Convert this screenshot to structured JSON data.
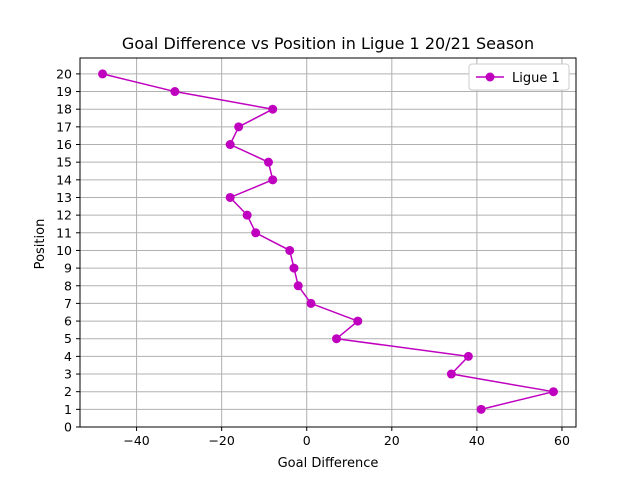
{
  "chart_data": {
    "type": "line",
    "title": "Goal Difference vs Position in Ligue 1 20/21 Season",
    "xlabel": "Goal Difference",
    "ylabel": "Position",
    "xlim": [
      -53.3,
      63.3
    ],
    "ylim": [
      0,
      20.9
    ],
    "xticks": [
      -40,
      -20,
      0,
      20,
      40,
      60
    ],
    "xtick_labels": [
      "−40",
      "−20",
      "0",
      "20",
      "40",
      "60"
    ],
    "yticks": [
      0,
      1,
      2,
      3,
      4,
      5,
      6,
      7,
      8,
      9,
      10,
      11,
      12,
      13,
      14,
      15,
      16,
      17,
      18,
      19,
      20
    ],
    "ytick_labels": [
      "0",
      "1",
      "2",
      "3",
      "4",
      "5",
      "6",
      "7",
      "8",
      "9",
      "10",
      "11",
      "12",
      "13",
      "14",
      "15",
      "16",
      "17",
      "18",
      "19",
      "20"
    ],
    "grid": true,
    "legend_position": "top-right",
    "series": [
      {
        "name": "Ligue 1",
        "color": "#bf00bf",
        "marker": "circle",
        "x": [
          41,
          58,
          34,
          38,
          7,
          12,
          1,
          -2,
          -3,
          -4,
          -12,
          -14,
          -18,
          -8,
          -9,
          -18,
          -16,
          -8,
          -31,
          -48
        ],
        "y": [
          1,
          2,
          3,
          4,
          5,
          6,
          7,
          8,
          9,
          10,
          11,
          12,
          13,
          14,
          15,
          16,
          17,
          18,
          19,
          20
        ]
      }
    ]
  }
}
